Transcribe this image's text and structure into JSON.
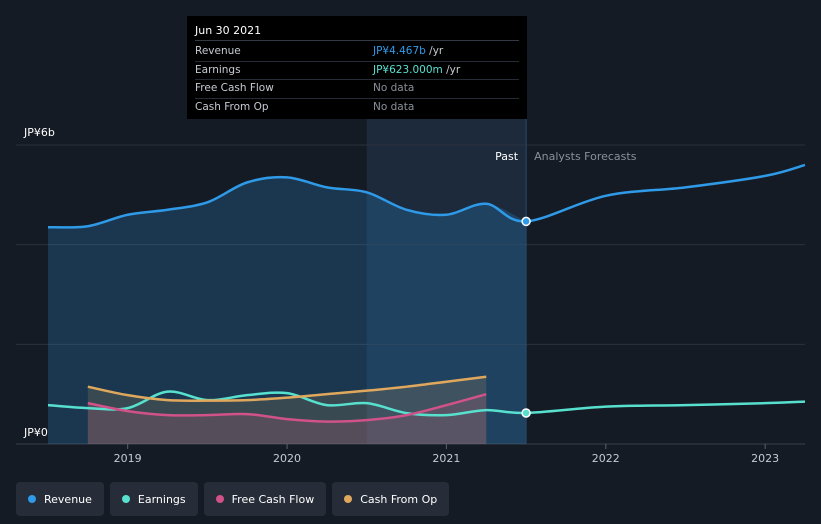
{
  "tooltip": {
    "date": "Jun 30 2021",
    "rows": [
      {
        "label": "Revenue",
        "value": "JP¥4.467b",
        "unit": " /yr"
      },
      {
        "label": "Earnings",
        "value": "JP¥623.000m",
        "unit": " /yr"
      },
      {
        "label": "Free Cash Flow",
        "value": "No data",
        "unit": ""
      },
      {
        "label": "Cash From Op",
        "value": "No data",
        "unit": ""
      }
    ]
  },
  "labels": {
    "past": "Past",
    "forecast": "Analysts Forecasts"
  },
  "legend": [
    {
      "label": "Revenue",
      "color": "#2f9ae8"
    },
    {
      "label": "Earnings",
      "color": "#58e0cf"
    },
    {
      "label": "Free Cash Flow",
      "color": "#d05288"
    },
    {
      "label": "Cash From Op",
      "color": "#e0a85c"
    }
  ],
  "chart_data": {
    "type": "line",
    "xlabel": "",
    "ylabel": "",
    "ytick_labels": [
      "JP¥6b",
      "JP¥0"
    ],
    "ylim": [
      0,
      6
    ],
    "xlim": [
      2018.5,
      2023.25
    ],
    "xticks": [
      2019,
      2020,
      2021,
      2022,
      2023
    ],
    "xtick_labels": [
      "2019",
      "2020",
      "2021",
      "2022",
      "2023"
    ],
    "past_divider_x": 2021.5,
    "shaded_period": [
      2020.5,
      2021.5
    ],
    "highlight_x": 2021.5,
    "series": [
      {
        "name": "Revenue",
        "color": "#2f9ae8",
        "fill": true,
        "x": [
          2018.5,
          2018.75,
          2019.0,
          2019.25,
          2019.5,
          2019.75,
          2020.0,
          2020.25,
          2020.5,
          2020.75,
          2021.0,
          2021.25,
          2021.5,
          2022.0,
          2022.5,
          2023.0,
          2023.25
        ],
        "y": [
          4.35,
          4.37,
          4.6,
          4.7,
          4.85,
          5.25,
          5.35,
          5.15,
          5.05,
          4.7,
          4.6,
          4.82,
          4.467,
          4.98,
          5.15,
          5.38,
          5.6
        ]
      },
      {
        "name": "Earnings",
        "color": "#58e0cf",
        "fill": false,
        "x": [
          2018.5,
          2018.75,
          2019.0,
          2019.25,
          2019.5,
          2019.75,
          2020.0,
          2020.25,
          2020.5,
          2020.75,
          2021.0,
          2021.25,
          2021.5,
          2022.0,
          2022.5,
          2023.0,
          2023.25
        ],
        "y": [
          0.78,
          0.72,
          0.72,
          1.05,
          0.88,
          0.98,
          1.02,
          0.78,
          0.82,
          0.62,
          0.58,
          0.68,
          0.623,
          0.75,
          0.78,
          0.82,
          0.85
        ]
      },
      {
        "name": "Free Cash Flow",
        "color": "#d05288",
        "fill": true,
        "x": [
          2018.75,
          2019.0,
          2019.25,
          2019.5,
          2019.75,
          2020.0,
          2020.25,
          2020.5,
          2020.75,
          2021.0,
          2021.25
        ],
        "y": [
          0.82,
          0.66,
          0.58,
          0.58,
          0.6,
          0.5,
          0.45,
          0.48,
          0.58,
          0.78,
          1.0
        ]
      },
      {
        "name": "Cash From Op",
        "color": "#e0a85c",
        "fill": true,
        "x": [
          2018.75,
          2019.0,
          2019.25,
          2019.5,
          2019.75,
          2020.0,
          2020.25,
          2020.5,
          2020.75,
          2021.0,
          2021.25
        ],
        "y": [
          1.15,
          0.98,
          0.88,
          0.87,
          0.88,
          0.93,
          1.0,
          1.07,
          1.15,
          1.25,
          1.35
        ]
      }
    ]
  }
}
